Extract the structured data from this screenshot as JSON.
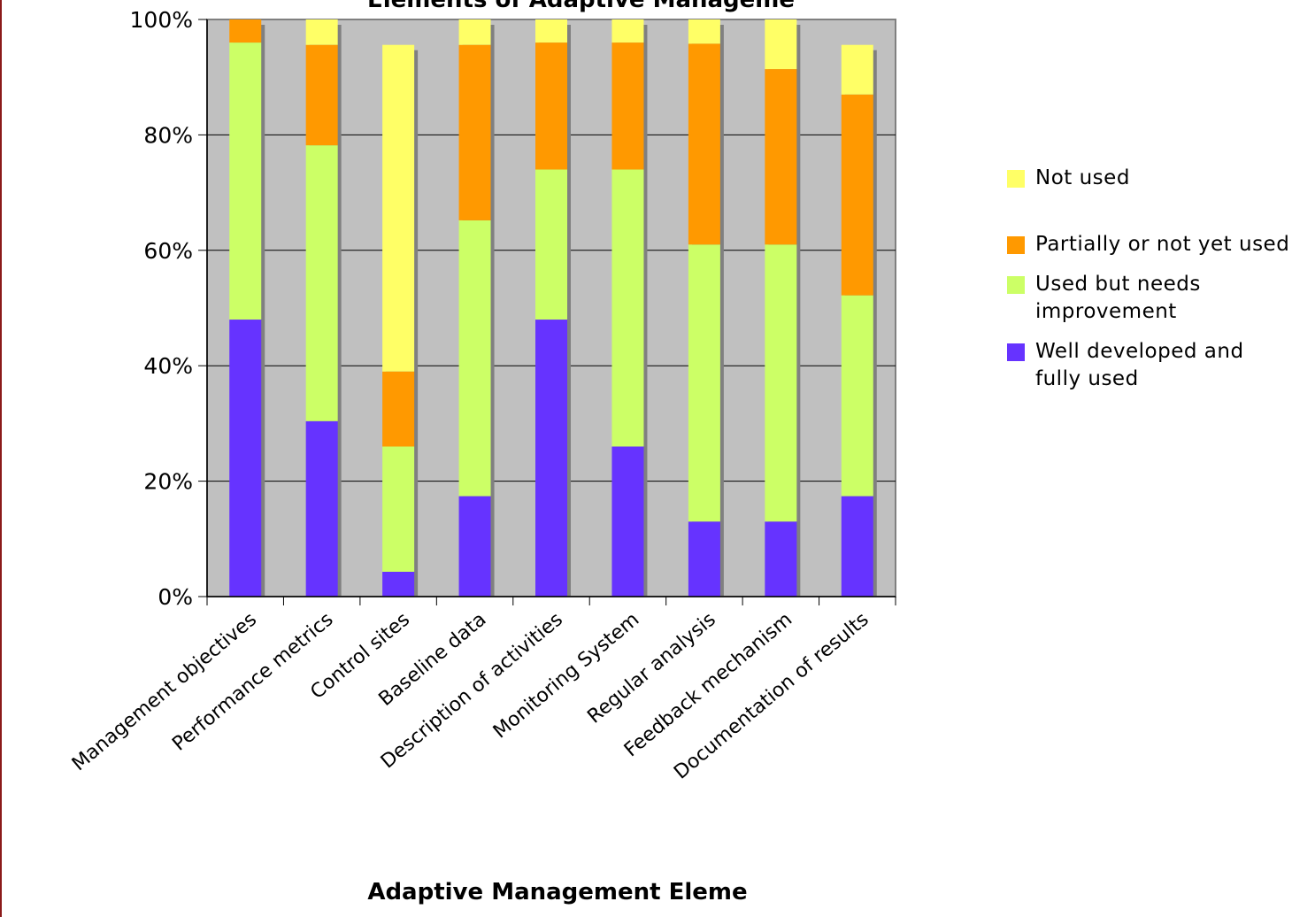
{
  "chart_data": {
    "type": "bar",
    "stacked": true,
    "stack_mode": "percent",
    "title": "Elements of Adaptive Manageme",
    "xlabel": "Adaptive Management Eleme",
    "ylabel": "",
    "ylim": [
      0,
      100
    ],
    "yticks": [
      "0%",
      "20%",
      "40%",
      "60%",
      "80%",
      "100%"
    ],
    "grid": true,
    "legend_position": "right",
    "plot_background": "#C0C0C0",
    "categories": [
      "Management objectives",
      "Performance metrics",
      "Control sites",
      "Baseline data",
      "Description of activities",
      "Monitoring System",
      "Regular analysis",
      "Feedback mechanism",
      "Documentation of results"
    ],
    "series": [
      {
        "name": "Well developed and fully used",
        "color": "#6633FF",
        "values": [
          48,
          30.4,
          4.3,
          17.4,
          48,
          26,
          13,
          13,
          17.4
        ]
      },
      {
        "name": "Used but needs improvement",
        "color": "#CCFF66",
        "values": [
          48,
          47.8,
          21.7,
          47.8,
          26,
          48,
          48,
          48,
          34.8
        ]
      },
      {
        "name": "Partially or not yet used",
        "color": "#FF9900",
        "values": [
          4,
          17.4,
          13,
          30.4,
          22,
          22,
          34.8,
          30.4,
          34.8
        ]
      },
      {
        "name": "Not used",
        "color": "#FFFF66",
        "values": [
          0,
          4.4,
          56.6,
          4.4,
          4,
          4,
          4.2,
          8.6,
          8.6
        ]
      }
    ],
    "legend": [
      {
        "label": "Not used",
        "color": "#FFFF66"
      },
      {
        "label": "Partially or not yet used",
        "color": "#FF9900"
      },
      {
        "label": "Used but needs improvement",
        "color": "#CCFF66"
      },
      {
        "label": "Well developed and fully used",
        "color": "#6633FF"
      }
    ]
  }
}
